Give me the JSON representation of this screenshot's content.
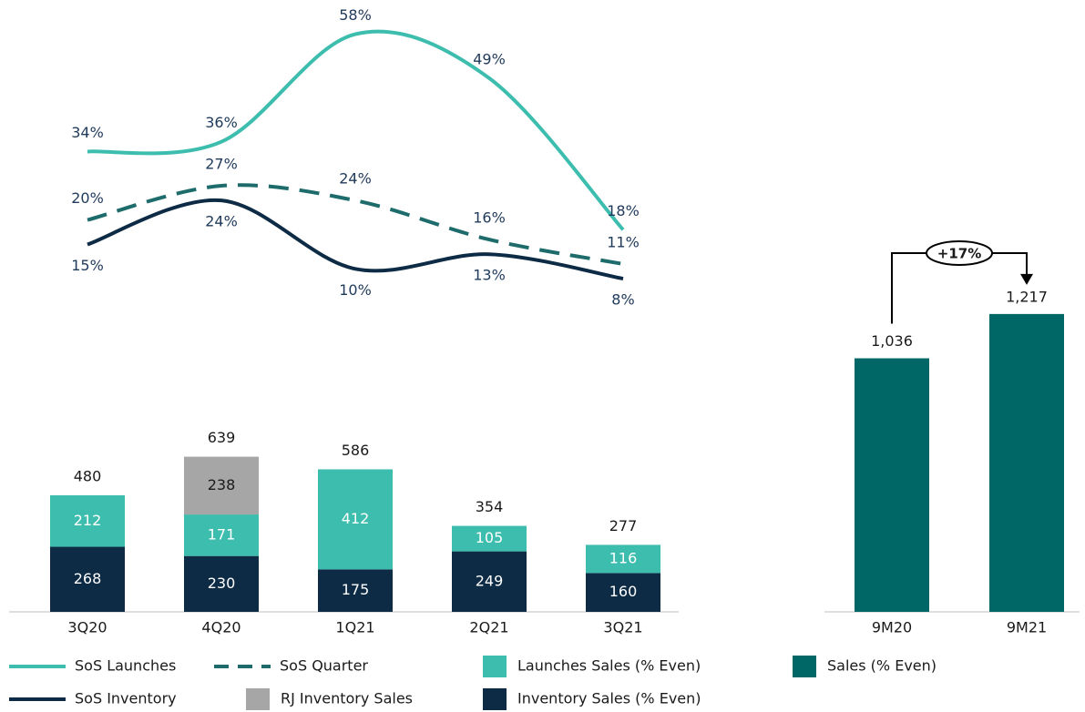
{
  "chart_data": [
    {
      "type": "combo",
      "categories": [
        "3Q20",
        "4Q20",
        "1Q21",
        "2Q21",
        "3Q21"
      ],
      "ylim": [
        0,
        2520
      ],
      "y2lim": [
        0,
        65
      ],
      "totals": [
        480,
        639,
        586,
        354,
        277
      ],
      "series": [
        {
          "name": "Inventory Sales (% Even)",
          "type": "bar",
          "color": "#0d2b45",
          "values": [
            268,
            230,
            175,
            249,
            160
          ]
        },
        {
          "name": "Launches Sales (% Even)",
          "type": "bar",
          "color": "#3dbdad",
          "values": [
            212,
            171,
            412,
            105,
            116
          ]
        },
        {
          "name": "RJ Inventory Sales",
          "type": "bar",
          "color": "#a6a6a6",
          "values": [
            null,
            238,
            null,
            null,
            null
          ]
        },
        {
          "name": "SoS Launches",
          "type": "line",
          "axis": "y2",
          "color": "#3dbdad",
          "values": [
            34,
            36,
            58,
            49,
            18
          ],
          "value_labels": [
            "34%",
            "36%",
            "58%",
            "49%",
            "18%"
          ]
        },
        {
          "name": "SoS Quarter",
          "type": "line",
          "axis": "y2",
          "dash": true,
          "color": "#1e6b6b",
          "values": [
            20,
            27,
            24,
            16,
            11
          ],
          "value_labels": [
            "20%",
            "27%",
            "24%",
            "16%",
            "11%"
          ]
        },
        {
          "name": "SoS Inventory",
          "type": "line",
          "axis": "y2",
          "color": "#0d2b45",
          "values": [
            15,
            24,
            10,
            13,
            8
          ],
          "value_labels": [
            "15%",
            "24%",
            "10%",
            "13%",
            "8%"
          ]
        }
      ]
    },
    {
      "type": "bar",
      "categories": [
        "9M20",
        "9M21"
      ],
      "ylim": [
        0,
        2500
      ],
      "series": [
        {
          "name": "Sales (% Even)",
          "color": "#006666",
          "values": [
            1036,
            1217
          ],
          "value_labels": [
            "1,036",
            "1,217"
          ]
        }
      ],
      "annotation": "+17%"
    }
  ]
}
